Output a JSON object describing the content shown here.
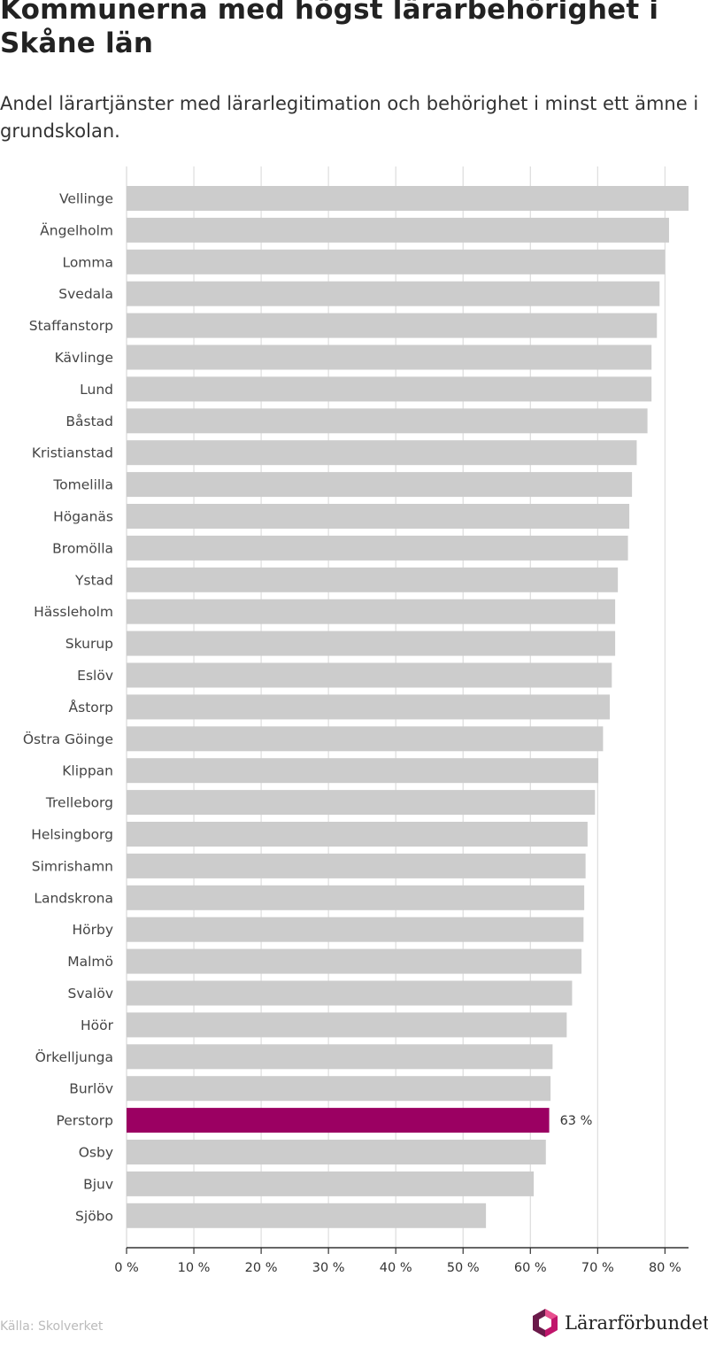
{
  "header": {
    "title": "Kommunerna med högst lärarbehörighet i Skåne län",
    "subtitle": "Andel lärartjänster med lärarlegitimation och behörighet i minst ett ämne i grundskolan."
  },
  "footer": {
    "source": "Källa: Skolverket",
    "logo_text": "Lärarförbundet"
  },
  "colors": {
    "bar": "#cccccc",
    "highlight": "#9b0062",
    "grid": "#dddddd",
    "axis": "#333333",
    "logo_pink": "#c0156b",
    "logo_dark": "#6b1a4a"
  },
  "chart_data": {
    "type": "bar",
    "orientation": "horizontal",
    "categories": [
      "Vellinge",
      "Ängelholm",
      "Lomma",
      "Svedala",
      "Staffanstorp",
      "Kävlinge",
      "Lund",
      "Båstad",
      "Kristianstad",
      "Tomelilla",
      "Höganäs",
      "Bromölla",
      "Ystad",
      "Hässleholm",
      "Skurup",
      "Eslöv",
      "Åstorp",
      "Östra Göinge",
      "Klippan",
      "Trelleborg",
      "Helsingborg",
      "Simrishamn",
      "Landskrona",
      "Hörby",
      "Malmö",
      "Svalöv",
      "Höör",
      "Örkelljunga",
      "Burlöv",
      "Perstorp",
      "Osby",
      "Bjuv",
      "Sjöbo"
    ],
    "values": [
      83.5,
      80.6,
      80.0,
      79.2,
      78.8,
      78.0,
      78.0,
      77.4,
      75.8,
      75.1,
      74.7,
      74.5,
      73.0,
      72.6,
      72.6,
      72.1,
      71.8,
      70.8,
      70.1,
      69.6,
      68.5,
      68.2,
      68.0,
      67.9,
      67.6,
      66.2,
      65.4,
      63.3,
      63.0,
      62.8,
      62.3,
      60.5,
      53.4
    ],
    "highlight": "Perstorp",
    "highlight_label": "63 %",
    "xlim": [
      0,
      83.5
    ],
    "ticks": [
      0,
      10,
      20,
      30,
      40,
      50,
      60,
      70,
      80
    ],
    "tick_labels": [
      "0 %",
      "10 %",
      "20 %",
      "30 %",
      "40 %",
      "50 %",
      "60 %",
      "70 %",
      "80 %"
    ],
    "grid": true
  }
}
